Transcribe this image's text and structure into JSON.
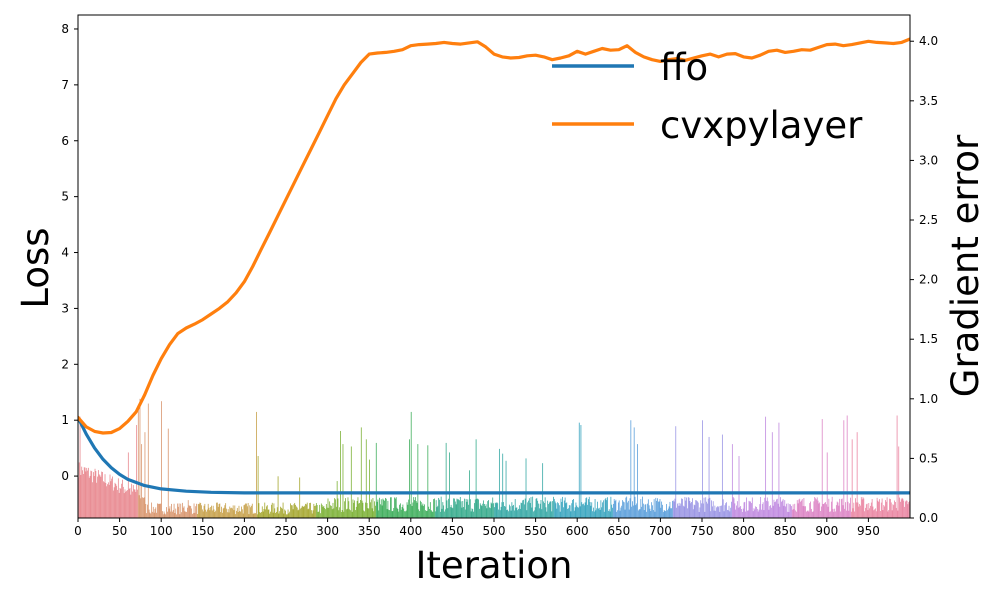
{
  "chart_data": {
    "type": "line",
    "xlabel": "Iteration",
    "ylabel": "Loss",
    "y2label": "Gradient error",
    "xlim": [
      0,
      1000
    ],
    "ylim": [
      -0.75,
      8.25
    ],
    "y2lim": [
      0,
      4.22
    ],
    "xticks": [
      0,
      50,
      100,
      150,
      200,
      250,
      300,
      350,
      400,
      450,
      500,
      550,
      600,
      650,
      700,
      750,
      800,
      850,
      900,
      950
    ],
    "yticks": [
      0,
      1,
      2,
      3,
      4,
      5,
      6,
      7,
      8
    ],
    "y2ticks": [
      "0.0",
      "0.5",
      "1.0",
      "1.5",
      "2.0",
      "2.5",
      "3.0",
      "3.5",
      "4.0"
    ],
    "grid": false,
    "legend_position": "top-right",
    "series": [
      {
        "name": "ffo",
        "color": "#1f77b4",
        "axis": "left",
        "x": [
          0,
          10,
          20,
          30,
          40,
          50,
          60,
          80,
          100,
          130,
          160,
          200,
          250,
          300,
          400,
          500,
          600,
          700,
          800,
          900,
          1000
        ],
        "y": [
          1.05,
          0.75,
          0.5,
          0.3,
          0.15,
          0.03,
          -0.06,
          -0.17,
          -0.23,
          -0.27,
          -0.29,
          -0.3,
          -0.3,
          -0.3,
          -0.3,
          -0.3,
          -0.3,
          -0.3,
          -0.3,
          -0.3,
          -0.3
        ]
      },
      {
        "name": "cvxpylayer",
        "color": "#ff7f0e",
        "axis": "left",
        "x": [
          0,
          10,
          20,
          30,
          40,
          50,
          60,
          70,
          80,
          90,
          100,
          110,
          120,
          130,
          140,
          150,
          160,
          170,
          180,
          190,
          200,
          210,
          220,
          230,
          240,
          250,
          260,
          270,
          280,
          290,
          300,
          310,
          320,
          330,
          340,
          350,
          360,
          370,
          380,
          390,
          400,
          410,
          420,
          430,
          440,
          450,
          460,
          470,
          480,
          490,
          500,
          510,
          520,
          530,
          540,
          550,
          560,
          570,
          580,
          590,
          600,
          610,
          620,
          630,
          640,
          650,
          660,
          670,
          680,
          690,
          700,
          710,
          720,
          730,
          740,
          750,
          760,
          770,
          780,
          790,
          800,
          810,
          820,
          830,
          840,
          850,
          860,
          870,
          880,
          890,
          900,
          910,
          920,
          930,
          940,
          950,
          960,
          970,
          980,
          990,
          1000
        ],
        "y": [
          1.05,
          0.88,
          0.8,
          0.77,
          0.78,
          0.85,
          0.98,
          1.15,
          1.45,
          1.8,
          2.1,
          2.35,
          2.55,
          2.65,
          2.72,
          2.8,
          2.9,
          3.0,
          3.12,
          3.28,
          3.48,
          3.75,
          4.05,
          4.35,
          4.65,
          4.95,
          5.25,
          5.55,
          5.85,
          6.15,
          6.45,
          6.75,
          7.0,
          7.2,
          7.4,
          7.55,
          7.57,
          7.58,
          7.6,
          7.63,
          7.7,
          7.72,
          7.73,
          7.74,
          7.76,
          7.74,
          7.73,
          7.75,
          7.77,
          7.68,
          7.55,
          7.5,
          7.48,
          7.49,
          7.52,
          7.53,
          7.5,
          7.45,
          7.48,
          7.52,
          7.6,
          7.55,
          7.6,
          7.65,
          7.62,
          7.63,
          7.7,
          7.58,
          7.5,
          7.45,
          7.42,
          7.45,
          7.47,
          7.44,
          7.48,
          7.52,
          7.55,
          7.5,
          7.55,
          7.56,
          7.5,
          7.48,
          7.53,
          7.6,
          7.62,
          7.58,
          7.6,
          7.63,
          7.62,
          7.67,
          7.72,
          7.73,
          7.7,
          7.72,
          7.75,
          7.78,
          7.76,
          7.75,
          7.74,
          7.76,
          7.82
        ]
      }
    ],
    "bars": {
      "name": "Gradient error",
      "axis": "right",
      "count": 1000,
      "seed": 7,
      "spikes": [
        [
          2,
          0.85
        ],
        [
          10,
          0.42
        ],
        [
          60,
          0.55
        ],
        [
          70,
          0.78
        ],
        [
          72,
          0.95
        ],
        [
          74,
          1.0
        ],
        [
          76,
          0.62
        ],
        [
          80,
          0.72
        ],
        [
          84,
          0.96
        ],
        [
          100,
          0.98
        ],
        [
          108,
          0.75
        ],
        [
          132,
          0.15
        ],
        [
          214,
          0.89
        ],
        [
          216,
          0.52
        ],
        [
          240,
          0.35
        ],
        [
          266,
          0.34
        ],
        [
          311,
          0.31
        ],
        [
          315,
          0.73
        ],
        [
          318,
          0.62
        ],
        [
          328,
          0.6
        ],
        [
          340,
          0.76
        ],
        [
          346,
          0.66
        ],
        [
          350,
          0.49
        ],
        [
          358,
          0.63
        ],
        [
          398,
          0.66
        ],
        [
          400,
          0.89
        ],
        [
          408,
          0.62
        ],
        [
          420,
          0.61
        ],
        [
          442,
          0.63
        ],
        [
          446,
          0.55
        ],
        [
          470,
          0.4
        ],
        [
          478,
          0.66
        ],
        [
          506,
          0.58
        ],
        [
          510,
          0.54
        ],
        [
          514,
          0.48
        ],
        [
          538,
          0.5
        ],
        [
          558,
          0.46
        ],
        [
          602,
          0.8
        ],
        [
          604,
          0.78
        ],
        [
          664,
          0.82
        ],
        [
          668,
          0.76
        ],
        [
          672,
          0.62
        ],
        [
          718,
          0.77
        ],
        [
          750,
          0.82
        ],
        [
          758,
          0.68
        ],
        [
          774,
          0.7
        ],
        [
          786,
          0.62
        ],
        [
          794,
          0.52
        ],
        [
          826,
          0.85
        ],
        [
          834,
          0.72
        ],
        [
          842,
          0.8
        ],
        [
          894,
          0.83
        ],
        [
          900,
          0.55
        ],
        [
          920,
          0.82
        ],
        [
          924,
          0.86
        ],
        [
          930,
          0.66
        ],
        [
          936,
          0.72
        ],
        [
          984,
          0.86
        ],
        [
          986,
          0.6
        ]
      ]
    }
  }
}
